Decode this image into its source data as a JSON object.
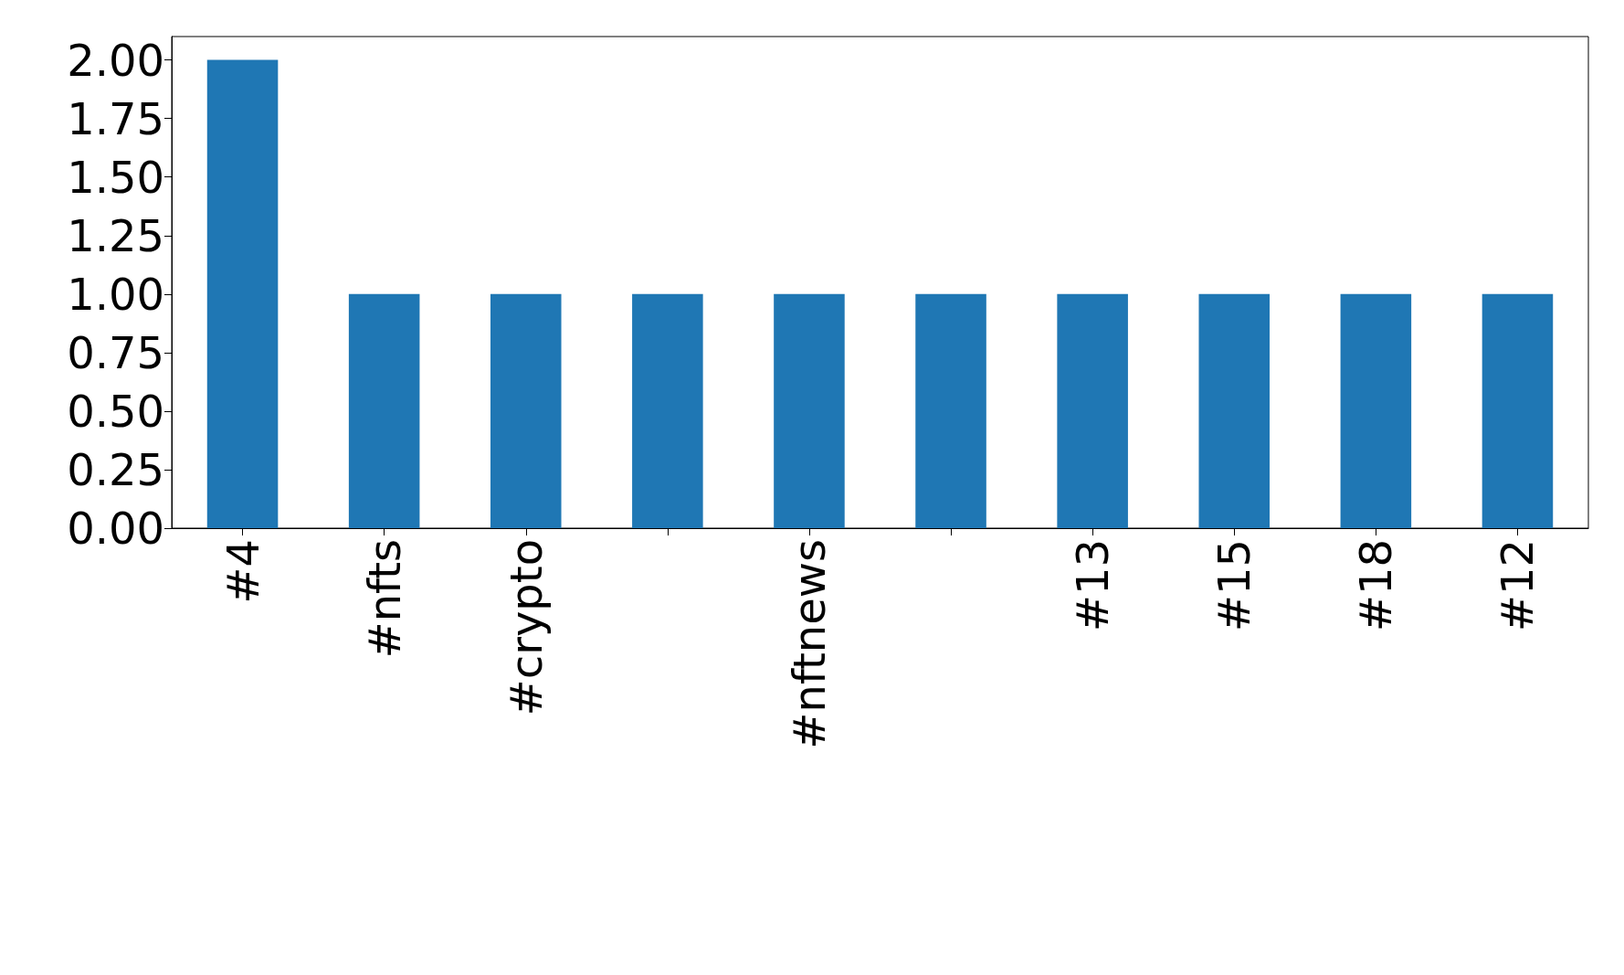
{
  "chart_data": {
    "type": "bar",
    "categories": [
      "#4",
      "#nfts",
      "#crypto",
      null,
      "#nftnews",
      null,
      "#13",
      "#15",
      "#18",
      "#12"
    ],
    "values": [
      2,
      1,
      1,
      1,
      1,
      1,
      1,
      1,
      1,
      1
    ],
    "color": "#1f77b4",
    "ylim": [
      0,
      2.1
    ],
    "yticks": [
      {
        "value": 0,
        "label": "0.00"
      },
      {
        "value": 0.25,
        "label": "0.25"
      },
      {
        "value": 0.5,
        "label": "0.50"
      },
      {
        "value": 0.75,
        "label": "0.75"
      },
      {
        "value": 1,
        "label": "1.00"
      },
      {
        "value": 1.25,
        "label": "1.25"
      },
      {
        "value": 1.5,
        "label": "1.50"
      },
      {
        "value": 1.75,
        "label": "1.75"
      },
      {
        "value": 2,
        "label": "2.00"
      }
    ],
    "grid": false
  }
}
